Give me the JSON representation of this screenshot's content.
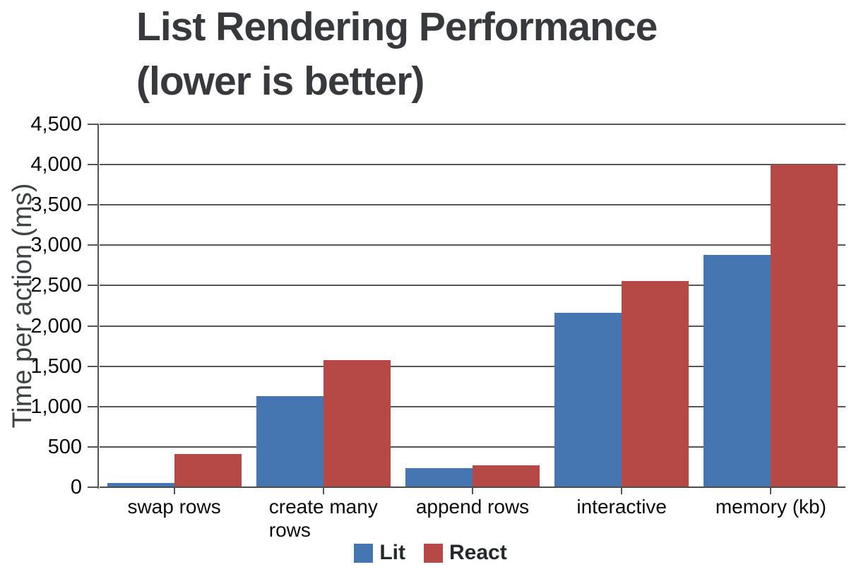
{
  "chart": {
    "title_display": "List Rendering Performance\n(lower is better)"
  },
  "chart_data": {
    "type": "bar",
    "title": "List Rendering Performance (lower is better)",
    "xlabel": "",
    "ylabel": "Time per action (ms)",
    "ylim": [
      0,
      4500
    ],
    "ytick_step": 500,
    "ytick_labels": [
      "0",
      "500",
      "1,000",
      "1,500",
      "2,000",
      "2,500",
      "3,000",
      "3,500",
      "4,000",
      "4,500"
    ],
    "grid": true,
    "legend_position": "bottom",
    "categories": [
      "swap rows",
      "create many rows",
      "append rows",
      "interactive",
      "memory (kb)"
    ],
    "category_display": [
      "swap rows",
      "create many\nrows",
      "append rows",
      "interactive",
      "memory (kb)"
    ],
    "series": [
      {
        "name": "Lit",
        "color": "#4576b1",
        "values": [
          50,
          1130,
          235,
          2160,
          2880
        ]
      },
      {
        "name": "React",
        "color": "#b64845",
        "values": [
          410,
          1580,
          270,
          2560,
          4000
        ]
      }
    ]
  },
  "colors": {
    "lit_blue": "#4576b1",
    "react_red": "#b64845",
    "gridline": "#555555",
    "title_text": "#37393d",
    "axis_text": "#0b0b0b"
  }
}
